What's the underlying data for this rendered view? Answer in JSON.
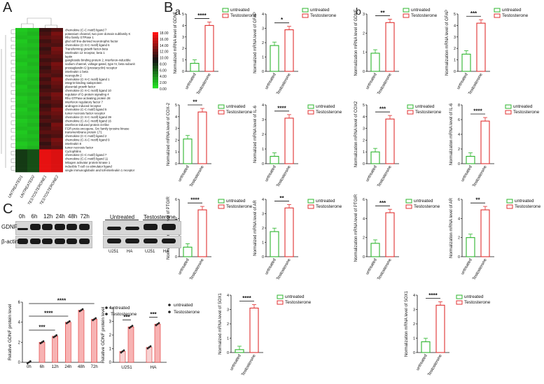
{
  "panels": {
    "A": "A",
    "B": "B",
    "a": "a",
    "b": "b",
    "C": "C"
  },
  "heatmap": {
    "colorbar_ticks": [
      "18.00",
      "16.00",
      "14.00",
      "12.00",
      "10.00",
      "8.00",
      "6.00",
      "4.00",
      "2.00",
      "0.00"
    ],
    "genes": [
      "chemokine (C-C motif) ligand 7",
      "potassium channel, two pore domain subfamily K",
      "Rho family GTPase 1",
      "glial cell line-derived neurotrophic factor",
      "chemokine (C-X-C motif) ligand 6",
      "Transforming growth factor-beta",
      "interleukin 12 receptor, beta 1",
      "leptin",
      "ganglioside binding protein 2, interferon-inducible",
      "sodium channel, voltage-gated, type IV, beta subunit",
      "prostaglandin I2 (prostacyclin) receptor",
      "interleukin 1 beta",
      "neuregulin 2",
      "chemokine (C-X-C motif) ligand 1",
      "integrin-binding sialoprotein",
      "placental growth factor",
      "chemokine (C-X-C motif) ligand 10",
      "regulator of G-protein signaling 4",
      "Rho GTPase activating protein 28",
      "interferon regulatory factor 7",
      "androgen induced receptor",
      "chemokine (C-C motif) ligand 5",
      "tumor necrosis factor receptor",
      "chemokine (C-X-C motif) ligand 39",
      "chemokine (C-X-C motif) ligand 16",
      "interferon-induced protein 44-like",
      "FGR proto-oncogene, Src family tyrosine kinase",
      "transmembrane protein 171",
      "chemokine (C-C motif) ligand 2",
      "chemokine (C-X-C motif) ligand 9",
      "interleukin 6",
      "tumor necrosis factor",
      "Cyclophilins",
      "chemokine (C-C motif) ligand 7",
      "chemokine (C-C motif) ligand 11",
      "Mitogen activator protein kinase 1",
      "inducible T-cell co-stimulator ligand",
      "single immunoglobulin and toll-interleukin 1 receptor"
    ],
    "samples": [
      "UNTREATED1",
      "UNTREATED2",
      "TESTOSTERONE1",
      "TESTOSTERONE2"
    ],
    "colors": {
      "low": "#22dd22",
      "mid": "#111111",
      "high": "#ff1111"
    }
  },
  "bar_legend": {
    "untreated": "untreated",
    "testosterone": "Testosterone"
  },
  "colors": {
    "untreated": "#2db52d",
    "testosterone": "#e03030",
    "accent": "#e03030"
  },
  "blots": {
    "time": [
      "0h",
      "6h",
      "12h",
      "24h",
      "48h",
      "72h"
    ],
    "gdnf": "GDNF",
    "actin": "β-actin",
    "groups": [
      "Untreated",
      "Testosterone"
    ],
    "cells": [
      "U251",
      "HA",
      "U251",
      "HA"
    ]
  },
  "chart_data": [
    {
      "id": "a-gdnf",
      "type": "bar",
      "categories": [
        "untreated",
        "Testosterone"
      ],
      "values": [
        0.7,
        4.0
      ],
      "ylim": [
        0,
        5
      ],
      "ticks": [
        "0",
        "1",
        "2",
        "3",
        "4",
        "5"
      ],
      "ylabel": "Normalized mRNA level of GDNF",
      "sig": "****"
    },
    {
      "id": "a-gfap",
      "type": "bar",
      "categories": [
        "untreated",
        "Testosterone"
      ],
      "values": [
        1.8,
        2.9
      ],
      "ylim": [
        0,
        4
      ],
      "ticks": [
        "0",
        "1",
        "2",
        "3",
        "4"
      ],
      "ylabel": "Normalized mRNA level of GFAP",
      "sig": "*"
    },
    {
      "id": "b-gdnf",
      "type": "bar",
      "categories": [
        "untreated",
        "Testosterone"
      ],
      "values": [
        0.95,
        2.55
      ],
      "ylim": [
        0,
        3
      ],
      "ticks": [
        "0",
        "1",
        "2",
        "3"
      ],
      "ylabel": "Normalization mRNA level of GDNF",
      "sig": "**"
    },
    {
      "id": "b-gfap",
      "type": "bar",
      "categories": [
        "untreated",
        "Testosterone"
      ],
      "values": [
        1.5,
        4.2
      ],
      "ylim": [
        0,
        5
      ],
      "ticks": [
        "0",
        "1",
        "2",
        "3",
        "4",
        "5"
      ],
      "ylabel": "Normalization mRNA level of GFAP",
      "sig": "***"
    },
    {
      "id": "a-cox2",
      "type": "bar",
      "categories": [
        "untreated",
        "Testosterone"
      ],
      "values": [
        2.1,
        4.4
      ],
      "ylim": [
        0,
        5
      ],
      "ticks": [
        "0",
        "1",
        "2",
        "3",
        "4",
        "5"
      ],
      "ylabel": "Normalized mRNA level of COX-2",
      "sig": "**"
    },
    {
      "id": "a-il6",
      "type": "bar",
      "categories": [
        "untreated",
        "Testosterone"
      ],
      "values": [
        0.5,
        3.1
      ],
      "ylim": [
        0,
        4
      ],
      "ticks": [
        "0",
        "1",
        "2",
        "3",
        "4"
      ],
      "ylabel": "Normalized mRNA level of IL-6",
      "sig": "****"
    },
    {
      "id": "b-cox2",
      "type": "bar",
      "categories": [
        "untreated",
        "Testosterone"
      ],
      "values": [
        1.0,
        3.8
      ],
      "ylim": [
        0,
        5
      ],
      "ticks": [
        "0",
        "1",
        "2",
        "3",
        "4",
        "5"
      ],
      "ylabel": "Normalization mRNA level of COX2",
      "sig": "***"
    },
    {
      "id": "b-il6",
      "type": "bar",
      "categories": [
        "untreated",
        "Testosterone"
      ],
      "values": [
        1.0,
        5.8
      ],
      "ylim": [
        0,
        8
      ],
      "ticks": [
        "0",
        "2",
        "4",
        "6",
        "8"
      ],
      "ylabel": "Normalization mRNA level of IL-6",
      "sig": "****"
    },
    {
      "id": "a-ptgir",
      "type": "bar",
      "categories": [
        "untreated",
        "Testosterone"
      ],
      "values": [
        1.0,
        4.9
      ],
      "ylim": [
        0,
        6
      ],
      "ticks": [
        "0",
        "2",
        "4",
        "6"
      ],
      "ylabel": "Normalized mRNA level of PTGIR",
      "sig": "****"
    },
    {
      "id": "a-ar",
      "type": "bar",
      "categories": [
        "untreated",
        "Testosterone"
      ],
      "values": [
        1.75,
        3.4
      ],
      "ylim": [
        0,
        4
      ],
      "ticks": [
        "0",
        "1",
        "2",
        "3",
        "4"
      ],
      "ylabel": "Normalized mRNA level of AR",
      "sig": "**"
    },
    {
      "id": "b-ptgir",
      "type": "bar",
      "categories": [
        "untreated",
        "Testosterone"
      ],
      "values": [
        1.4,
        4.6
      ],
      "ylim": [
        0,
        6
      ],
      "ticks": [
        "0",
        "2",
        "4",
        "6"
      ],
      "ylabel": "Normalization mRNA level of PTGIR",
      "sig": "***"
    },
    {
      "id": "b-ar",
      "type": "bar",
      "categories": [
        "untreated",
        "Testosterone"
      ],
      "values": [
        2.0,
        4.9
      ],
      "ylim": [
        0,
        6
      ],
      "ticks": [
        "0",
        "2",
        "4",
        "6"
      ],
      "ylabel": "Normalization mRNA level of AR",
      "sig": "**"
    },
    {
      "id": "a-sox1",
      "type": "bar",
      "categories": [
        "untreated",
        "Testosterone"
      ],
      "values": [
        0.2,
        3.1
      ],
      "ylim": [
        0,
        4
      ],
      "ticks": [
        "0",
        "1",
        "2",
        "3",
        "4"
      ],
      "ylabel": "Normalized mRNA level of SOX1",
      "sig": "****"
    },
    {
      "id": "b-sox1",
      "type": "bar",
      "categories": [
        "untreated",
        "Testosterone"
      ],
      "values": [
        0.75,
        3.3
      ],
      "ylim": [
        0,
        4
      ],
      "ticks": [
        "0",
        "1",
        "2",
        "3",
        "4"
      ],
      "ylabel": "Normalization mRNA level of SOX1",
      "sig": "****"
    },
    {
      "id": "c-time",
      "type": "bar",
      "categories": [
        "0h",
        "6h",
        "12h",
        "24h",
        "48h",
        "72h"
      ],
      "values": [
        0,
        2.0,
        2.6,
        4.0,
        5.2,
        4.3
      ],
      "ylim": [
        0,
        6
      ],
      "ticks": [
        "0",
        "2",
        "4",
        "6"
      ],
      "ylabel": "Relative GDNF protein level",
      "sig": [
        "****",
        "****",
        "***"
      ]
    },
    {
      "id": "c-cells",
      "type": "bar",
      "categories": [
        "U251",
        "HA"
      ],
      "series": [
        {
          "name": "untreated",
          "values": [
            0.8,
            1.1
          ]
        },
        {
          "name": "Testosterone",
          "values": [
            2.6,
            2.8
          ]
        }
      ],
      "ylim": [
        0,
        4
      ],
      "ticks": [
        "0",
        "1",
        "2",
        "3",
        "4"
      ],
      "ylabel": "Relative GDNF protein level",
      "sig": [
        "***",
        "***"
      ]
    }
  ]
}
